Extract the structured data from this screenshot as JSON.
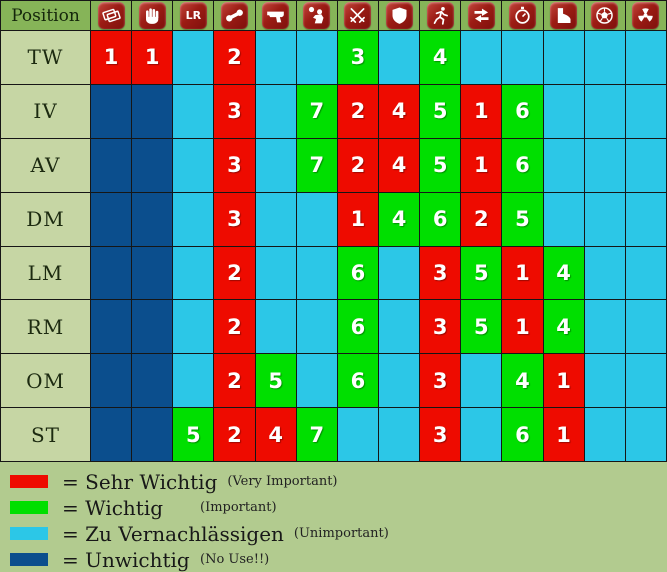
{
  "colors": {
    "red": "#ee0b00",
    "green": "#00df00",
    "cyan": "#2cc7e7",
    "navy": "#0b4e8d",
    "header_bg": "#86b458",
    "label_bg": "#c6d6a4",
    "page_bg": "#b2cb8f",
    "icon_bg": "#9c1c14"
  },
  "header": {
    "position_label": "Position",
    "columns": [
      {
        "icon": "cards-icon"
      },
      {
        "icon": "hand-icon"
      },
      {
        "icon": "lr-icon",
        "label": "LR"
      },
      {
        "icon": "dumbbell-icon"
      },
      {
        "icon": "pistol-icon"
      },
      {
        "icon": "heading-player-icon"
      },
      {
        "icon": "crossed-swords-icon"
      },
      {
        "icon": "shield-icon"
      },
      {
        "icon": "runner-icon"
      },
      {
        "icon": "swap-arrows-icon"
      },
      {
        "icon": "stopwatch-icon"
      },
      {
        "icon": "boot-icon"
      },
      {
        "icon": "soccer-ball-icon"
      },
      {
        "icon": "radiation-icon"
      }
    ]
  },
  "chart_data": {
    "type": "heatmap",
    "columns": [
      "cards",
      "hand",
      "LR",
      "dumbbell",
      "pistol",
      "heading-player",
      "crossed-swords",
      "shield",
      "runner",
      "swap-arrows",
      "stopwatch",
      "boot",
      "soccer-ball",
      "radiation"
    ],
    "rows": [
      "TW",
      "IV",
      "AV",
      "DM",
      "LM",
      "RM",
      "OM",
      "ST"
    ],
    "cell_code_key": {
      "R": "Sehr Wichtig (red)",
      "G": "Wichtig (green)",
      "C": "Zu Vernachlässigen (cyan)",
      "N": "Unwichtig (navy)",
      "number": "priority rank"
    },
    "cells": [
      [
        "R1",
        "R1",
        "C",
        "R2",
        "C",
        "C",
        "G3",
        "C",
        "G4",
        "C",
        "C",
        "C",
        "C",
        "C"
      ],
      [
        "N",
        "N",
        "C",
        "R3",
        "C",
        "G7",
        "R2",
        "R4",
        "G5",
        "R1",
        "G6",
        "C",
        "C",
        "C"
      ],
      [
        "N",
        "N",
        "C",
        "R3",
        "C",
        "G7",
        "R2",
        "R4",
        "G5",
        "R1",
        "G6",
        "C",
        "C",
        "C"
      ],
      [
        "N",
        "N",
        "C",
        "R3",
        "C",
        "C",
        "R1",
        "G4",
        "G6",
        "R2",
        "G5",
        "C",
        "C",
        "C"
      ],
      [
        "N",
        "N",
        "C",
        "R2",
        "C",
        "C",
        "G6",
        "C",
        "R3",
        "G5",
        "R1",
        "G4",
        "C",
        "C"
      ],
      [
        "N",
        "N",
        "C",
        "R2",
        "C",
        "C",
        "G6",
        "C",
        "R3",
        "G5",
        "R1",
        "G4",
        "C",
        "C"
      ],
      [
        "N",
        "N",
        "C",
        "R2",
        "G5",
        "C",
        "G6",
        "C",
        "R3",
        "C",
        "G4",
        "R1",
        "C",
        "C"
      ],
      [
        "N",
        "N",
        "G5",
        "R2",
        "R4",
        "G7",
        "C",
        "C",
        "R3",
        "C",
        "G6",
        "R1",
        "C",
        "C"
      ]
    ]
  },
  "legend": [
    {
      "color": "red",
      "de": "=  Sehr Wichtig",
      "en": "(Very Important)"
    },
    {
      "color": "green",
      "de": "= Wichtig",
      "en": "(Important)"
    },
    {
      "color": "cyan",
      "de": "= Zu Vernachlässigen",
      "en": "(Unimportant)"
    },
    {
      "color": "navy",
      "de": "= Unwichtig",
      "en": "(No Use!!)"
    }
  ]
}
